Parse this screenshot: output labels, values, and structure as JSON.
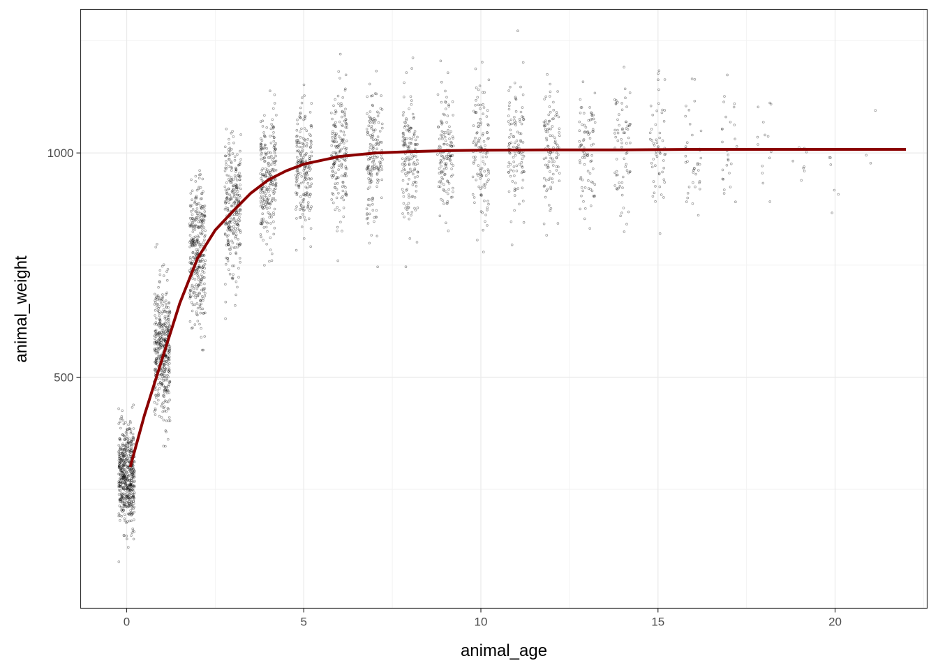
{
  "chart_data": {
    "type": "scatter",
    "title": "",
    "xlabel": "animal_age",
    "ylabel": "animal_weight",
    "xlim": [
      -1.3,
      22.6
    ],
    "ylim": [
      -15,
      1320
    ],
    "x_ticks": [
      0,
      5,
      10,
      15,
      20
    ],
    "x_tick_labels": [
      "0",
      "5",
      "10",
      "15",
      "20"
    ],
    "y_ticks": [
      500,
      1000
    ],
    "y_tick_labels": [
      "500",
      "1000"
    ],
    "grid": true,
    "legend": "none",
    "point_color": "#000000",
    "line_color": "#8b0000",
    "points_by_age": [
      {
        "age": 0,
        "n": 520,
        "mean": 280,
        "sd": 55
      },
      {
        "age": 1,
        "n": 420,
        "mean": 560,
        "sd": 75
      },
      {
        "age": 2,
        "n": 330,
        "mean": 770,
        "sd": 80
      },
      {
        "age": 3,
        "n": 270,
        "mean": 880,
        "sd": 75
      },
      {
        "age": 4,
        "n": 230,
        "mean": 935,
        "sd": 75
      },
      {
        "age": 5,
        "n": 200,
        "mean": 965,
        "sd": 75
      },
      {
        "age": 6,
        "n": 180,
        "mean": 985,
        "sd": 75
      },
      {
        "age": 7,
        "n": 160,
        "mean": 995,
        "sd": 75
      },
      {
        "age": 8,
        "n": 150,
        "mean": 1000,
        "sd": 75
      },
      {
        "age": 9,
        "n": 135,
        "mean": 1000,
        "sd": 75
      },
      {
        "age": 10,
        "n": 120,
        "mean": 1005,
        "sd": 75
      },
      {
        "age": 11,
        "n": 110,
        "mean": 1005,
        "sd": 75
      },
      {
        "age": 12,
        "n": 100,
        "mean": 1005,
        "sd": 75
      },
      {
        "age": 13,
        "n": 85,
        "mean": 1005,
        "sd": 75
      },
      {
        "age": 14,
        "n": 70,
        "mean": 1005,
        "sd": 75
      },
      {
        "age": 15,
        "n": 55,
        "mean": 1005,
        "sd": 75
      },
      {
        "age": 16,
        "n": 40,
        "mean": 1000,
        "sd": 75
      },
      {
        "age": 17,
        "n": 28,
        "mean": 1000,
        "sd": 75
      },
      {
        "age": 18,
        "n": 14,
        "mean": 1000,
        "sd": 60
      },
      {
        "age": 19,
        "n": 8,
        "mean": 985,
        "sd": 55
      },
      {
        "age": 20,
        "n": 6,
        "mean": 970,
        "sd": 55
      },
      {
        "age": 21,
        "n": 3,
        "mean": 960,
        "sd": 60
      }
    ],
    "fitted_line": {
      "x": [
        0.1,
        0.5,
        1,
        1.5,
        2,
        2.5,
        3,
        3.5,
        4,
        4.5,
        5,
        6,
        7,
        8,
        9,
        10,
        12,
        14,
        16,
        18,
        20,
        22
      ],
      "y": [
        300,
        415,
        540,
        665,
        765,
        828,
        870,
        910,
        940,
        960,
        975,
        992,
        1000,
        1003,
        1005,
        1006,
        1007,
        1007,
        1008,
        1008,
        1008,
        1008
      ]
    }
  }
}
